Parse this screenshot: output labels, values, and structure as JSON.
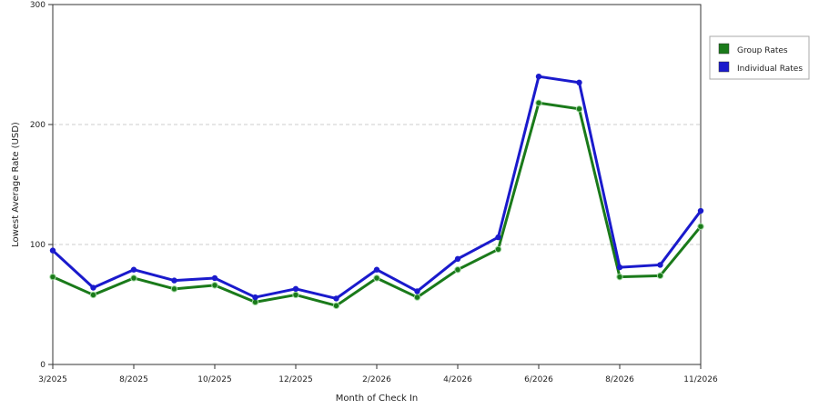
{
  "chart_data": {
    "type": "line",
    "xlabel": "Month of Check In",
    "ylabel": "Lowest Average Rate (USD)",
    "ylim": [
      0,
      300
    ],
    "yticks": [
      0,
      100,
      200,
      300
    ],
    "x_tick_labels": [
      "3/2025",
      "8/2025",
      "10/2025",
      "12/2025",
      "2/2026",
      "4/2026",
      "6/2026",
      "8/2026",
      "11/2026"
    ],
    "x_tick_indices": [
      0,
      2,
      4,
      6,
      8,
      10,
      12,
      14,
      16
    ],
    "points_count": 17,
    "grid": "horizontal-dashed",
    "legend_position": "right",
    "series": [
      {
        "name": "Group Rates",
        "color": "#1a7a1a",
        "values": [
          73,
          58,
          72,
          63,
          66,
          52,
          58,
          49,
          72,
          56,
          79,
          96,
          218,
          213,
          73,
          74,
          115
        ]
      },
      {
        "name": "Individual Rates",
        "color": "#1a1acc",
        "values": [
          95,
          64,
          79,
          70,
          72,
          56,
          63,
          55,
          79,
          61,
          88,
          106,
          240,
          235,
          81,
          83,
          128
        ]
      }
    ]
  }
}
